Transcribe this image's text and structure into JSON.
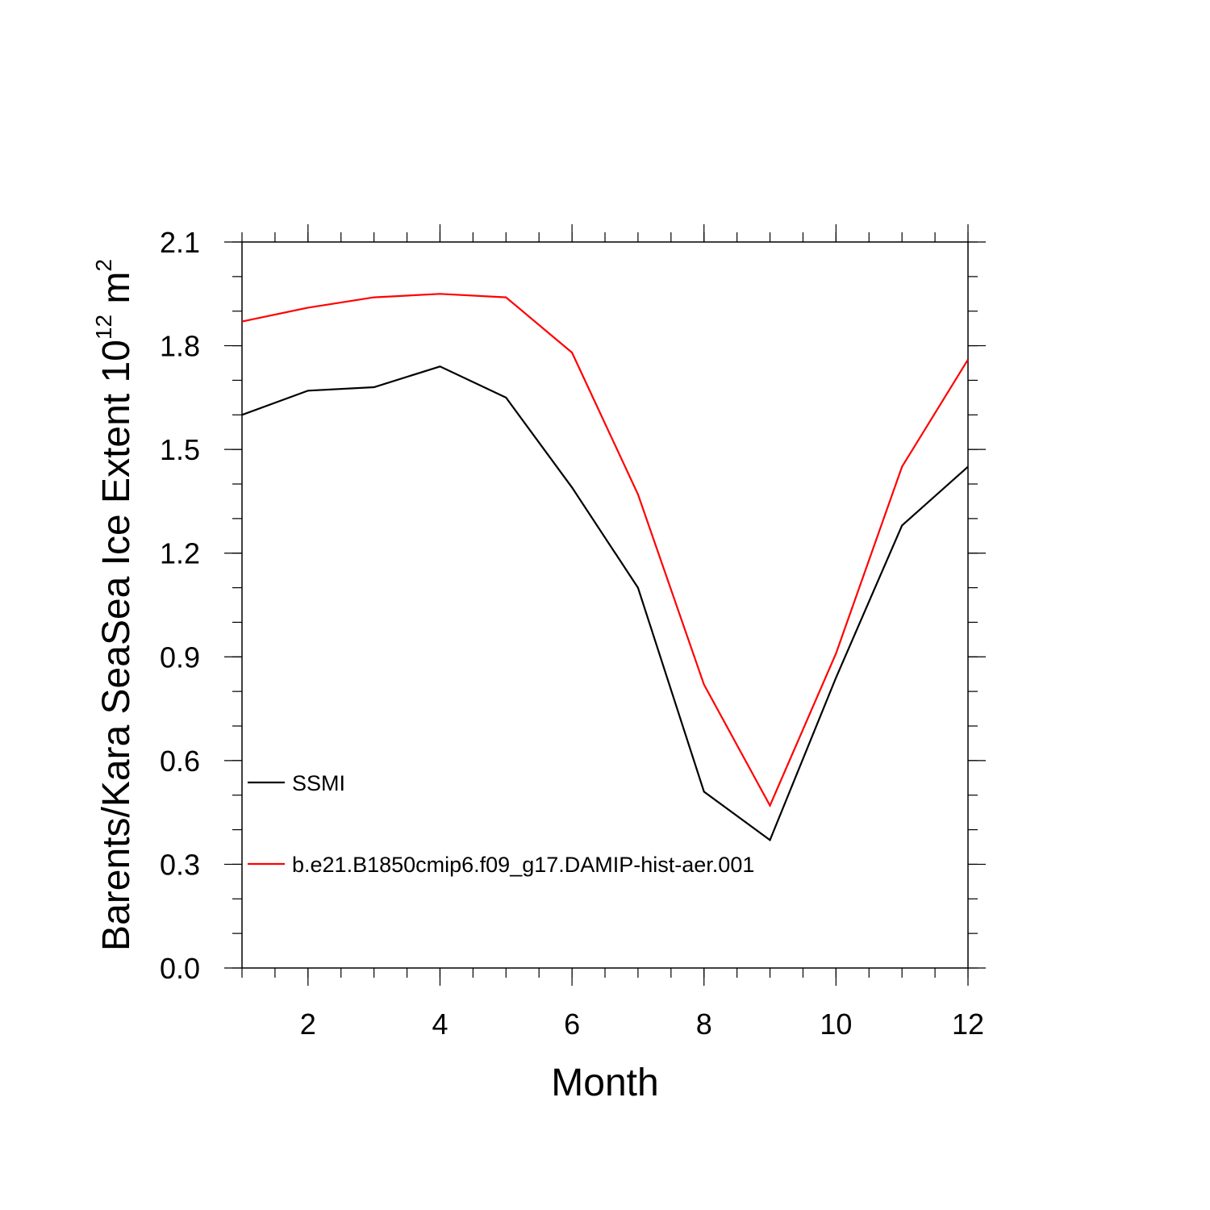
{
  "chart_data": {
    "type": "line",
    "xlabel": "Month",
    "ylabel": {
      "main": "Barents/Kara SeaSea Ice Extent 10",
      "exponent": "12",
      "unit": " m",
      "unit_exponent": "2"
    },
    "xlim": [
      1,
      12
    ],
    "ylim": [
      0.0,
      2.1
    ],
    "x_ticks": [
      2,
      4,
      6,
      8,
      10,
      12
    ],
    "x_tick_labels": [
      "2",
      "4",
      "6",
      "8",
      "10",
      "12"
    ],
    "y_ticks": [
      0.0,
      0.3,
      0.6,
      0.9,
      1.2,
      1.5,
      1.8,
      2.1
    ],
    "y_tick_labels": [
      "0.0",
      "0.3",
      "0.6",
      "0.9",
      "1.2",
      "1.5",
      "1.8",
      "2.1"
    ],
    "grid": false,
    "legend_position": "lower-left",
    "x": [
      1,
      2,
      3,
      4,
      5,
      6,
      7,
      8,
      9,
      10,
      11,
      12
    ],
    "series": [
      {
        "name": "SSMI",
        "color": "#000000",
        "values": [
          1.6,
          1.67,
          1.68,
          1.74,
          1.65,
          1.39,
          1.1,
          0.51,
          0.37,
          0.84,
          1.28,
          1.45
        ]
      },
      {
        "name": "b.e21.B1850cmip6.f09_g17.DAMIP-hist-aer.001",
        "color": "#ff0000",
        "values": [
          1.87,
          1.91,
          1.94,
          1.95,
          1.94,
          1.78,
          1.37,
          0.82,
          0.47,
          0.91,
          1.45,
          1.76
        ]
      }
    ]
  }
}
